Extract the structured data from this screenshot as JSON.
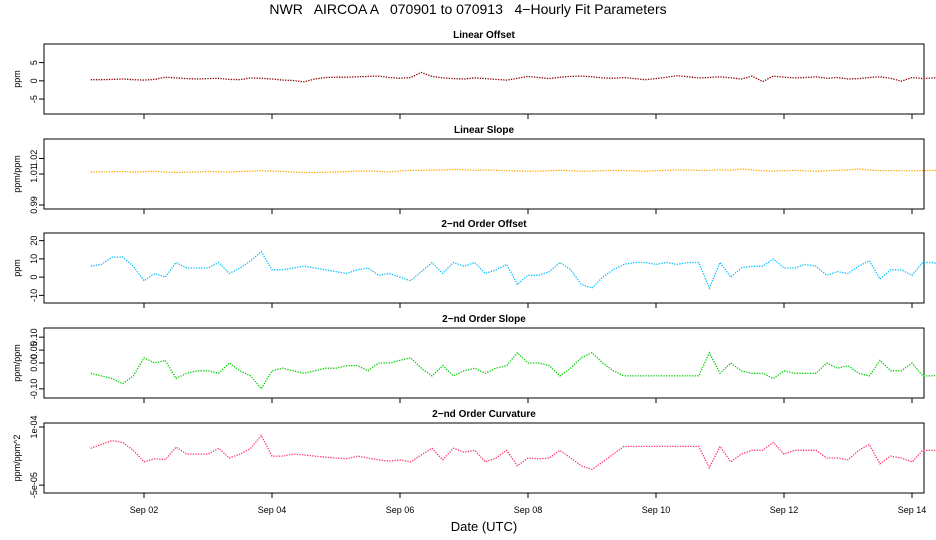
{
  "header": {
    "title": "NWR   AIRCOA A   070901 to 070913   4−Hourly Fit Parameters",
    "xlabel": "Date (UTC)"
  },
  "x_ticks": [
    "Sep 02",
    "Sep 04",
    "Sep 06",
    "Sep 08",
    "Sep 10",
    "Sep 12",
    "Sep 14"
  ],
  "chart_data": [
    {
      "type": "line",
      "title": "Linear Offset",
      "ylabel": "ppm",
      "yticks": [
        "-5",
        "0",
        "5"
      ],
      "ytick_values": [
        -5,
        0,
        5
      ],
      "ylim": [
        -8,
        9
      ],
      "color": "#8b0000",
      "line_style": "dotted",
      "x_start": "2007-09-01 04:00 UTC",
      "x_step_hours": 4,
      "values": [
        0.3,
        0.3,
        0.4,
        0.5,
        0.3,
        0.2,
        0.4,
        1.0,
        0.8,
        0.6,
        0.5,
        0.6,
        0.7,
        0.4,
        0.3,
        0.8,
        0.7,
        0.5,
        0.2,
        0.1,
        -0.3,
        0.5,
        0.9,
        1.0,
        1.0,
        1.1,
        1.2,
        1.3,
        0.9,
        0.7,
        0.9,
        2.3,
        1.2,
        0.8,
        0.6,
        0.5,
        0.8,
        0.6,
        0.4,
        0.2,
        0.7,
        1.2,
        0.9,
        0.6,
        1.0,
        1.2,
        1.3,
        1.1,
        0.8,
        0.7,
        0.9,
        0.6,
        0.3,
        0.6,
        1.0,
        1.4,
        1.1,
        0.8,
        0.9,
        1.1,
        0.8,
        0.5,
        1.3,
        -0.2,
        1.3,
        1.0,
        0.8,
        0.9,
        1.1,
        0.7,
        0.9,
        0.5,
        0.6,
        0.9,
        1.1,
        0.7,
        -0.1,
        0.9,
        0.6,
        0.8,
        0.9,
        1.1,
        0.7,
        0.6,
        0.7,
        0.7
      ]
    },
    {
      "type": "line",
      "title": "Linear Slope",
      "ylabel": "ppm/ppm",
      "yticks": [
        "0.99",
        "1.01",
        "1.02"
      ],
      "ytick_values": [
        0.99,
        1.01,
        1.02
      ],
      "ylim": [
        0.99,
        1.03
      ],
      "color": "#ffa500",
      "line_style": "dotted",
      "x_start": "2007-09-01 04:00 UTC",
      "x_step_hours": 4,
      "values": [
        1.0113,
        1.0114,
        1.0115,
        1.0116,
        1.0112,
        1.0115,
        1.0118,
        1.0112,
        1.011,
        1.0111,
        1.0113,
        1.0117,
        1.0114,
        1.0112,
        1.0117,
        1.0118,
        1.0121,
        1.0119,
        1.0116,
        1.0112,
        1.011,
        1.011,
        1.0111,
        1.0113,
        1.0116,
        1.0118,
        1.012,
        1.0117,
        1.0113,
        1.012,
        1.0124,
        1.0123,
        1.0125,
        1.0126,
        1.013,
        1.0127,
        1.0123,
        1.0126,
        1.0124,
        1.0122,
        1.012,
        1.0118,
        1.0119,
        1.0121,
        1.0124,
        1.0121,
        1.0118,
        1.0119,
        1.0121,
        1.0123,
        1.0122,
        1.012,
        1.0118,
        1.0121,
        1.0124,
        1.0126,
        1.0125,
        1.0123,
        1.0124,
        1.0127,
        1.0124,
        1.0132,
        1.0126,
        1.0121,
        1.0119,
        1.0121,
        1.0123,
        1.012,
        1.0118,
        1.0121,
        1.0124,
        1.0126,
        1.0133,
        1.0125,
        1.0122,
        1.0122,
        1.0121,
        1.012,
        1.0122,
        1.0124,
        1.0121,
        1.0123,
        1.0122,
        1.0124,
        1.0124,
        1.0123
      ]
    },
    {
      "type": "line",
      "title": "2−nd Order Offset",
      "ylabel": "ppm",
      "yticks": [
        "-10",
        "0",
        "10",
        "20"
      ],
      "ytick_values": [
        -10,
        0,
        10,
        20
      ],
      "ylim": [
        -12,
        22
      ],
      "color": "#00bfff",
      "line_style": "dotted",
      "x_start": "2007-09-01 04:00 UTC",
      "x_step_hours": 4,
      "values": [
        6,
        7,
        11,
        11,
        6,
        -2,
        2,
        0,
        8,
        5,
        5,
        5,
        8,
        2,
        5,
        9,
        14,
        4,
        4,
        5,
        6,
        5,
        4,
        3,
        2,
        4,
        5,
        1,
        2,
        0,
        -2,
        3,
        8,
        2,
        8,
        6,
        8,
        2,
        4,
        7,
        -4,
        1,
        1,
        3,
        8,
        4,
        -4,
        -6,
        0,
        4,
        7,
        8,
        8,
        7,
        8,
        7,
        8,
        8,
        -6,
        8,
        0,
        5,
        6,
        6,
        10,
        5,
        5,
        7,
        6,
        1,
        3,
        2,
        6,
        9,
        -1,
        4,
        4,
        1,
        8,
        8,
        6,
        5
      ]
    },
    {
      "type": "line",
      "title": "2−nd Order Slope",
      "ylabel": "ppm/ppm",
      "yticks": [
        "-0.10",
        "0.00",
        "0.05",
        "0.10"
      ],
      "ytick_values": [
        -0.1,
        0.0,
        0.05,
        0.1
      ],
      "ylim": [
        -0.12,
        0.12
      ],
      "color": "#00cd00",
      "line_style": "dotted",
      "x_start": "2007-09-01 04:00 UTC",
      "x_step_hours": 4,
      "values": [
        -0.04,
        -0.05,
        -0.06,
        -0.08,
        -0.05,
        0.02,
        0.0,
        0.01,
        -0.06,
        -0.04,
        -0.03,
        -0.03,
        -0.04,
        0.0,
        -0.03,
        -0.05,
        -0.1,
        -0.03,
        -0.02,
        -0.03,
        -0.04,
        -0.03,
        -0.02,
        -0.02,
        -0.01,
        -0.01,
        -0.03,
        0.0,
        0.0,
        0.01,
        0.02,
        -0.02,
        -0.05,
        -0.01,
        -0.05,
        -0.03,
        -0.02,
        -0.04,
        -0.02,
        -0.01,
        0.04,
        0.0,
        0.0,
        -0.01,
        -0.05,
        -0.02,
        0.02,
        0.04,
        0.0,
        -0.03,
        -0.05,
        -0.05,
        -0.05,
        -0.05,
        -0.05,
        -0.05,
        -0.05,
        -0.05,
        0.04,
        -0.04,
        0.0,
        -0.03,
        -0.04,
        -0.04,
        -0.06,
        -0.03,
        -0.04,
        -0.04,
        -0.04,
        0.0,
        -0.02,
        -0.01,
        -0.04,
        -0.05,
        0.01,
        -0.03,
        -0.03,
        0.0,
        -0.05,
        -0.05,
        -0.04,
        -0.03
      ]
    },
    {
      "type": "line",
      "title": "2−nd Order Curvature",
      "ylabel": "ppm/ppm^2",
      "yticks": [
        "-5e-05",
        "1e-04"
      ],
      "ytick_values": [
        -5e-05,
        0.0001
      ],
      "ylim": [
        -6e-05,
        0.0001
      ],
      "color": "#ff3366",
      "line_style": "dotted",
      "x_start": "2007-09-01 04:00 UTC",
      "x_step_hours": 4,
      "values": [
        4.5e-05,
        5.5e-05,
        6.5e-05,
        6e-05,
        4e-05,
        1e-05,
        1.8e-05,
        1.6e-05,
        4.8e-05,
        3e-05,
        3e-05,
        3e-05,
        4.5e-05,
        2e-05,
        3e-05,
        4.5e-05,
        7.8e-05,
        2.5e-05,
        2.5e-05,
        3e-05,
        2.8e-05,
        2.5e-05,
        2.2e-05,
        2e-05,
        1.8e-05,
        2.5e-05,
        2e-05,
        1.5e-05,
        1.2e-05,
        1.5e-05,
        1e-05,
        2.8e-05,
        4.5e-05,
        1.5e-05,
        4.5e-05,
        3.5e-05,
        4e-05,
        1e-05,
        2e-05,
        4e-05,
        0.0,
        2e-05,
        1.8e-05,
        2e-05,
        4e-05,
        2e-05,
        0.0,
        -1e-05,
        1e-05,
        3e-05,
        5e-05,
        5e-05,
        5e-05,
        5e-05,
        5e-05,
        5e-05,
        5e-05,
        5e-05,
        -5e-06,
        5e-05,
        1e-05,
        3e-05,
        4e-05,
        4e-05,
        6e-05,
        3e-05,
        4e-05,
        4e-05,
        4e-05,
        2e-05,
        2e-05,
        1.5e-05,
        4e-05,
        5.5e-05,
        5e-06,
        2.5e-05,
        2e-05,
        1e-05,
        4e-05,
        4e-05,
        3.5e-05,
        3e-05
      ]
    }
  ]
}
